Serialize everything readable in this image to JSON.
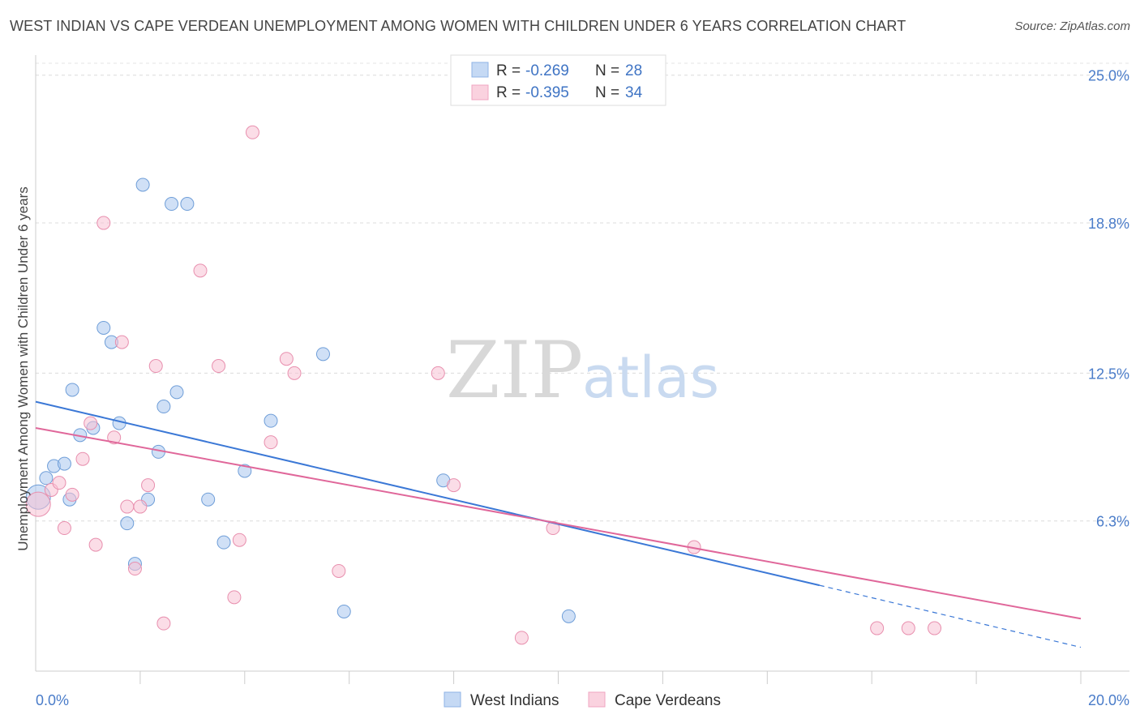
{
  "title": "WEST INDIAN VS CAPE VERDEAN UNEMPLOYMENT AMONG WOMEN WITH CHILDREN UNDER 6 YEARS CORRELATION CHART",
  "source": "Source: ZipAtlas.com",
  "watermark": {
    "zip": "ZIP",
    "atlas": "atlas"
  },
  "legend": {
    "r_label": "R =",
    "n_label": "N =",
    "rows": [
      {
        "r": "-0.269",
        "n": "28"
      },
      {
        "r": "-0.395",
        "n": "34"
      }
    ]
  },
  "chart_data": {
    "type": "scatter",
    "title": "WEST INDIAN VS CAPE VERDEAN UNEMPLOYMENT AMONG WOMEN WITH CHILDREN UNDER 6 YEARS CORRELATION CHART",
    "xlabel": "",
    "ylabel": "Unemployment Among Women with Children Under 6 years",
    "xlim": [
      0,
      20
    ],
    "ylim": [
      0,
      25.5
    ],
    "y_ticks": [
      6.3,
      12.5,
      18.8,
      25.0
    ],
    "y_tick_labels": [
      "6.3%",
      "12.5%",
      "18.8%",
      "25.0%"
    ],
    "x_tick_labels": [
      "0.0%",
      "20.0%"
    ],
    "grid": true,
    "legend_position": "top-center",
    "series": [
      {
        "name": "West Indians",
        "color": "#a9c6ee",
        "stroke": "#6f9ed8",
        "line_color": "#3b78d6",
        "r": -0.269,
        "n": 28,
        "trend": {
          "x0": 0,
          "y0": 11.3,
          "x1": 15.0,
          "y1": 3.6,
          "dash_to_x": 20.0,
          "dash_to_y": 1.0
        },
        "points": [
          [
            0.05,
            7.3
          ],
          [
            0.2,
            8.1
          ],
          [
            0.35,
            8.6
          ],
          [
            0.55,
            8.7
          ],
          [
            0.65,
            7.2
          ],
          [
            0.7,
            11.8
          ],
          [
            0.85,
            9.9
          ],
          [
            1.1,
            10.2
          ],
          [
            1.3,
            14.4
          ],
          [
            1.45,
            13.8
          ],
          [
            1.6,
            10.4
          ],
          [
            1.75,
            6.2
          ],
          [
            1.9,
            4.5
          ],
          [
            2.05,
            20.4
          ],
          [
            2.15,
            7.2
          ],
          [
            2.35,
            9.2
          ],
          [
            2.45,
            11.1
          ],
          [
            2.6,
            19.6
          ],
          [
            2.7,
            11.7
          ],
          [
            2.9,
            19.6
          ],
          [
            3.3,
            7.2
          ],
          [
            3.6,
            5.4
          ],
          [
            4.0,
            8.4
          ],
          [
            4.5,
            10.5
          ],
          [
            5.5,
            13.3
          ],
          [
            5.9,
            2.5
          ],
          [
            7.8,
            8.0
          ],
          [
            10.2,
            2.3
          ]
        ]
      },
      {
        "name": "Cape Verdeans",
        "color": "#f7c1d3",
        "stroke": "#e88fae",
        "line_color": "#e0679a",
        "r": -0.395,
        "n": 34,
        "trend": {
          "x0": 0,
          "y0": 10.2,
          "x1": 20.0,
          "y1": 2.2
        },
        "points": [
          [
            0.05,
            7.0
          ],
          [
            0.3,
            7.6
          ],
          [
            0.45,
            7.9
          ],
          [
            0.55,
            6.0
          ],
          [
            0.7,
            7.4
          ],
          [
            0.9,
            8.9
          ],
          [
            1.05,
            10.4
          ],
          [
            1.15,
            5.3
          ],
          [
            1.3,
            18.8
          ],
          [
            1.5,
            9.8
          ],
          [
            1.65,
            13.8
          ],
          [
            1.75,
            6.9
          ],
          [
            1.9,
            4.3
          ],
          [
            2.0,
            6.9
          ],
          [
            2.15,
            7.8
          ],
          [
            2.3,
            12.8
          ],
          [
            2.45,
            2.0
          ],
          [
            3.15,
            16.8
          ],
          [
            3.5,
            12.8
          ],
          [
            3.8,
            3.1
          ],
          [
            3.9,
            5.5
          ],
          [
            4.15,
            22.6
          ],
          [
            4.5,
            9.6
          ],
          [
            4.8,
            13.1
          ],
          [
            4.95,
            12.5
          ],
          [
            5.8,
            4.2
          ],
          [
            7.7,
            12.5
          ],
          [
            8.0,
            7.8
          ],
          [
            9.3,
            1.4
          ],
          [
            9.9,
            6.0
          ],
          [
            12.6,
            5.2
          ],
          [
            16.1,
            1.8
          ],
          [
            16.7,
            1.8
          ],
          [
            17.2,
            1.8
          ]
        ]
      }
    ]
  }
}
